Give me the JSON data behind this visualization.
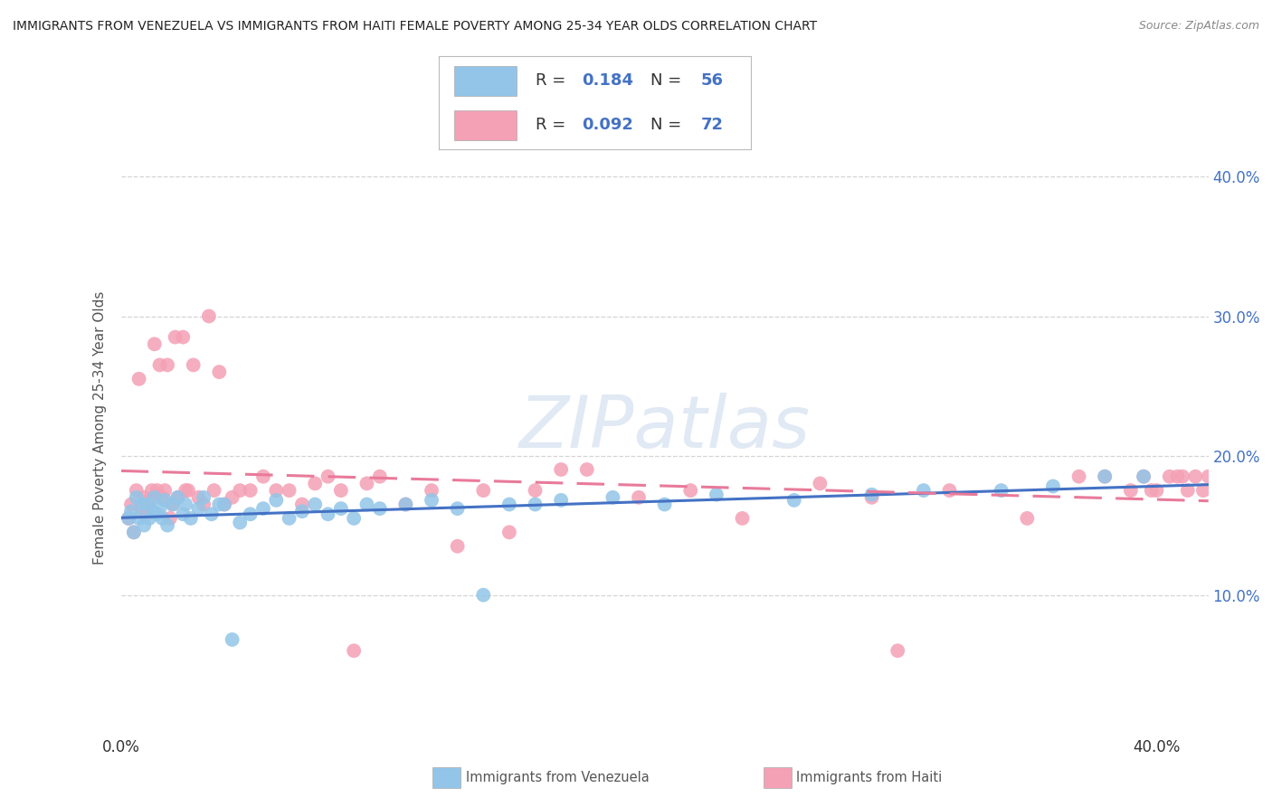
{
  "title": "IMMIGRANTS FROM VENEZUELA VS IMMIGRANTS FROM HAITI FEMALE POVERTY AMONG 25-34 YEAR OLDS CORRELATION CHART",
  "source": "Source: ZipAtlas.com",
  "ylabel": "Female Poverty Among 25-34 Year Olds",
  "xlim": [
    0.0,
    0.42
  ],
  "ylim": [
    0.0,
    0.44
  ],
  "ytick_positions": [
    0.1,
    0.2,
    0.3,
    0.4
  ],
  "ytick_labels": [
    "10.0%",
    "20.0%",
    "30.0%",
    "40.0%"
  ],
  "xtick_positions": [
    0.0,
    0.4
  ],
  "xtick_labels": [
    "0.0%",
    "40.0%"
  ],
  "venezuela_color": "#92c5e8",
  "haiti_color": "#f4a0b5",
  "venezuela_line_color": "#4472c4",
  "haiti_line_color": "#e87a9a",
  "right_tick_color": "#4472c4",
  "R_venezuela": 0.184,
  "N_venezuela": 56,
  "R_haiti": 0.092,
  "N_haiti": 72,
  "watermark": "ZIPatlas",
  "background_color": "#ffffff",
  "grid_color": "#d0d0d0",
  "venezuela_x": [
    0.003,
    0.004,
    0.005,
    0.006,
    0.007,
    0.008,
    0.009,
    0.01,
    0.011,
    0.012,
    0.013,
    0.014,
    0.015,
    0.016,
    0.017,
    0.018,
    0.02,
    0.022,
    0.024,
    0.025,
    0.027,
    0.03,
    0.032,
    0.035,
    0.038,
    0.04,
    0.043,
    0.046,
    0.05,
    0.055,
    0.06,
    0.065,
    0.07,
    0.075,
    0.08,
    0.085,
    0.09,
    0.095,
    0.1,
    0.11,
    0.12,
    0.13,
    0.14,
    0.15,
    0.16,
    0.17,
    0.19,
    0.21,
    0.23,
    0.26,
    0.29,
    0.31,
    0.34,
    0.36,
    0.38,
    0.395
  ],
  "venezuela_y": [
    0.155,
    0.16,
    0.145,
    0.17,
    0.155,
    0.165,
    0.15,
    0.165,
    0.155,
    0.16,
    0.17,
    0.158,
    0.162,
    0.155,
    0.168,
    0.15,
    0.165,
    0.17,
    0.158,
    0.165,
    0.155,
    0.162,
    0.17,
    0.158,
    0.165,
    0.165,
    0.068,
    0.152,
    0.158,
    0.162,
    0.168,
    0.155,
    0.16,
    0.165,
    0.158,
    0.162,
    0.155,
    0.165,
    0.162,
    0.165,
    0.168,
    0.162,
    0.1,
    0.165,
    0.165,
    0.168,
    0.17,
    0.165,
    0.172,
    0.168,
    0.172,
    0.175,
    0.175,
    0.178,
    0.185,
    0.185
  ],
  "haiti_x": [
    0.003,
    0.004,
    0.005,
    0.006,
    0.007,
    0.008,
    0.009,
    0.01,
    0.011,
    0.012,
    0.013,
    0.014,
    0.015,
    0.016,
    0.017,
    0.018,
    0.019,
    0.02,
    0.021,
    0.022,
    0.024,
    0.025,
    0.026,
    0.028,
    0.03,
    0.032,
    0.034,
    0.036,
    0.038,
    0.04,
    0.043,
    0.046,
    0.05,
    0.055,
    0.06,
    0.065,
    0.07,
    0.075,
    0.08,
    0.085,
    0.09,
    0.095,
    0.1,
    0.11,
    0.12,
    0.13,
    0.14,
    0.15,
    0.16,
    0.17,
    0.18,
    0.2,
    0.22,
    0.24,
    0.27,
    0.29,
    0.3,
    0.32,
    0.35,
    0.37,
    0.38,
    0.39,
    0.395,
    0.398,
    0.4,
    0.405,
    0.408,
    0.41,
    0.412,
    0.415,
    0.418,
    0.42
  ],
  "haiti_y": [
    0.155,
    0.165,
    0.145,
    0.175,
    0.255,
    0.16,
    0.17,
    0.158,
    0.168,
    0.175,
    0.28,
    0.175,
    0.265,
    0.17,
    0.175,
    0.265,
    0.155,
    0.165,
    0.285,
    0.17,
    0.285,
    0.175,
    0.175,
    0.265,
    0.17,
    0.165,
    0.3,
    0.175,
    0.26,
    0.165,
    0.17,
    0.175,
    0.175,
    0.185,
    0.175,
    0.175,
    0.165,
    0.18,
    0.185,
    0.175,
    0.06,
    0.18,
    0.185,
    0.165,
    0.175,
    0.135,
    0.175,
    0.145,
    0.175,
    0.19,
    0.19,
    0.17,
    0.175,
    0.155,
    0.18,
    0.17,
    0.06,
    0.175,
    0.155,
    0.185,
    0.185,
    0.175,
    0.185,
    0.175,
    0.175,
    0.185,
    0.185,
    0.185,
    0.175,
    0.185,
    0.175,
    0.185
  ]
}
